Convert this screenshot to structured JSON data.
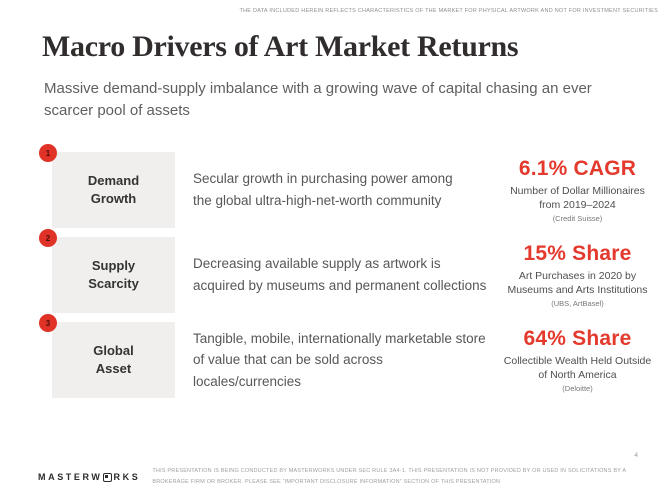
{
  "slide": {
    "top_disclaimer": "THE DATA INCLUDED HEREIN REFLECTS CHARACTERISTICS OF THE MARKET FOR PHYSICAL ARTWORK AND NOT FOR INVESTMENT SECURITIES",
    "title": "Macro Drivers of Art Market Returns",
    "subtitle": "Massive demand-supply imbalance with a growing wave of capital chasing an ever\nscarcer pool of assets",
    "page_number": "4"
  },
  "rows": [
    {
      "number": "1",
      "label": "Demand\nGrowth",
      "description": "Secular growth in purchasing power among\nthe global ultra-high-net-worth community",
      "stat": "6.1% CAGR",
      "stat_caption": "Number of Dollar Millionaires\nfrom 2019–2024",
      "stat_source": "(Credit Suisse)"
    },
    {
      "number": "2",
      "label": "Supply\nScarcity",
      "description": "Decreasing available supply as artwork is\nacquired by museums and permanent collections",
      "stat": "15% Share",
      "stat_caption": "Art Purchases in 2020 by\nMuseums and Arts Institutions",
      "stat_source": "(UBS, ArtBasel)"
    },
    {
      "number": "3",
      "label": "Global\nAsset",
      "description": "Tangible, mobile, internationally marketable store\nof value that can be sold across locales/currencies",
      "stat": "64% Share",
      "stat_caption": "Collectible Wealth Held Outside\nof North America",
      "stat_source": "(Deloitte)"
    }
  ],
  "footer": {
    "logo_prefix": "MASTERW",
    "logo_suffix": "RKS",
    "disclaimer": "THIS PRESENTATION IS BEING CONDUCTED BY MASTERWORKS UNDER SEC RULE 3A4-1. THIS PRESENTATION IS NOT PROVIDED BY OR USED IN SOLICITATIONS BY A BROKERAGE FIRM OR BROKER. PLEASE SEE “IMPORTANT DISCLOSURE INFORMATION” SECTION OF THIS PRESENTATION"
  },
  "colors": {
    "accent_red": "#E4392D",
    "box_gray": "#F0EFED",
    "title_ink": "#312D2D"
  }
}
